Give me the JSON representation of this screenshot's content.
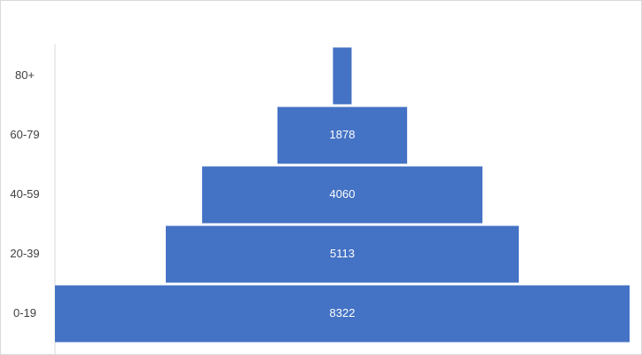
{
  "chart_data": {
    "type": "funnel",
    "categories": [
      "0-19",
      "20-39",
      "40-59",
      "60-79",
      "80+"
    ],
    "values": [
      8322,
      5113,
      4060,
      1878,
      270
    ],
    "value_labels": [
      "8322",
      "5113",
      "4060",
      "1878",
      null
    ],
    "color": "#4472c4"
  }
}
